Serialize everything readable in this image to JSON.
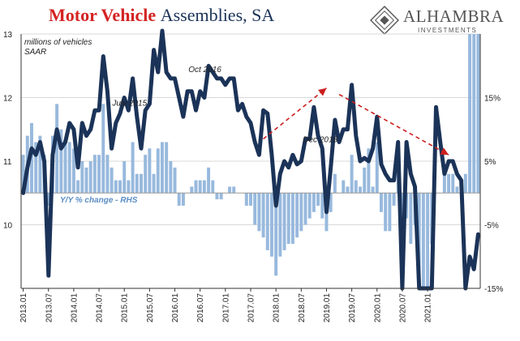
{
  "title": {
    "part1": "Motor Vehicle",
    "part2": "Assemblies, SA"
  },
  "logo": {
    "name": "ALHAMBRA",
    "sub": "INVESTMENTS"
  },
  "colors": {
    "line": "#1b3358",
    "bars": "#98b9dd",
    "arrow": "#cc1f1f",
    "title_red": "#d42323"
  },
  "chart_data": {
    "type": "line",
    "units_note": [
      "millions of vehicles",
      "SAAR"
    ],
    "x_ticks": [
      "2013.01",
      "2013.07",
      "2014.01",
      "2014.07",
      "2015.01",
      "2015.07",
      "2016.01",
      "2016.07",
      "2017.01",
      "2017.07",
      "2018.01",
      "2018.07",
      "2019.01",
      "2019.07",
      "2020.01",
      "2020.07",
      "2021.01"
    ],
    "start": "2013-01",
    "ylim": [
      9,
      13
    ],
    "y_ticks": [
      10,
      11,
      12,
      13
    ],
    "rhs_ylim": [
      -15,
      25
    ],
    "rhs_ticks": [
      {
        "v": 15,
        "label": "15%"
      },
      {
        "v": 5,
        "label": "5%"
      },
      {
        "v": -5,
        "label": "-5%"
      },
      {
        "v": -15,
        "label": "-15%"
      }
    ],
    "series": [
      {
        "type": "line",
        "values": [
          10.5,
          10.9,
          11.2,
          11.1,
          11.3,
          11.0,
          9.2,
          11.1,
          11.5,
          11.2,
          11.3,
          11.6,
          11.5,
          10.9,
          11.6,
          11.4,
          11.5,
          11.8,
          11.8,
          12.65,
          12.1,
          11.2,
          11.6,
          11.75,
          12.0,
          11.8,
          12.3,
          11.7,
          11.2,
          11.8,
          11.9,
          12.75,
          12.4,
          13.2,
          12.4,
          12.3,
          12.3,
          12.0,
          11.7,
          12.1,
          12.1,
          11.8,
          12.1,
          12.0,
          12.5,
          12.4,
          12.3,
          12.3,
          12.2,
          12.3,
          12.3,
          11.8,
          11.9,
          11.7,
          11.6,
          11.3,
          11.1,
          11.8,
          11.75,
          11.1,
          10.3,
          10.8,
          11.0,
          10.9,
          11.1,
          10.95,
          11.0,
          11.35,
          11.35,
          11.85,
          11.4,
          11.2,
          10.2,
          10.9,
          11.65,
          11.3,
          11.5,
          11.5,
          12.2,
          11.4,
          11.0,
          11.05,
          11.0,
          11.2,
          11.7,
          10.95,
          10.8,
          10.7,
          10.7,
          11.3,
          9.0,
          11.3,
          10.8,
          10.6,
          9.0,
          9.0,
          9.0,
          9.0,
          11.85,
          11.3,
          10.8,
          11.0,
          11.0,
          10.8,
          10.7,
          9.0,
          9.5,
          9.3,
          9.85
        ],
        "peak_label_points": [
          {
            "label": "July 2015",
            "index": 30
          },
          {
            "label": "Oct 2016",
            "index": 45
          },
          {
            "label": "Dec 2018",
            "index": 71
          }
        ]
      },
      {
        "type": "bar",
        "name": "Y/Y % change - RHS",
        "values": [
          6,
          9,
          11,
          8,
          9,
          6,
          -2,
          9,
          14,
          10,
          8,
          8,
          7,
          2,
          5,
          4,
          5,
          6,
          6,
          14,
          6,
          4,
          2,
          2,
          5,
          2,
          8,
          3,
          3,
          6,
          7,
          3,
          7,
          8,
          8,
          5,
          4,
          -2,
          -2,
          0,
          1,
          2,
          2,
          2,
          4,
          2,
          -1,
          -1,
          0,
          1,
          1,
          0,
          0,
          -2,
          -2,
          -5,
          -6,
          -7,
          -9,
          -10,
          -13,
          -10,
          -9,
          -8,
          -8,
          -7,
          -6,
          -5,
          -4,
          -3,
          -2,
          -4,
          -6,
          -3,
          3,
          0,
          2,
          1,
          6,
          2,
          1,
          4,
          7,
          1,
          8,
          -3,
          -6,
          -6,
          -2,
          4,
          -8,
          -4,
          -8,
          -5,
          -40,
          -20,
          -15,
          -8,
          0,
          0,
          3,
          3,
          3,
          1,
          2,
          3,
          40,
          48,
          60
        ],
        "bar_min_index": 0,
        "bar_visible_floor": -15
      }
    ],
    "annotations": [
      {
        "type": "arrow",
        "from_index": 57,
        "from_value": 11.35,
        "to_index": 72,
        "to_value": 12.15
      },
      {
        "type": "arrow",
        "from_index": 75,
        "from_value": 12.05,
        "to_index": 101,
        "to_value": 11.1
      }
    ],
    "rhs_label": "Y/Y % change - RHS"
  }
}
